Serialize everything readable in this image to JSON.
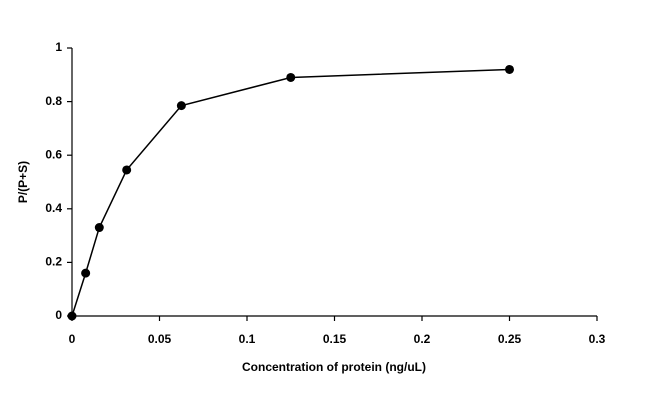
{
  "chart_data": {
    "type": "line",
    "x_label": "Concentration of protein (ng/uL)",
    "y_label": "P/(P+S)",
    "x": [
      0,
      0.0078,
      0.0156,
      0.03125,
      0.0625,
      0.125,
      0.25
    ],
    "series": [
      {
        "color": "#000000",
        "values": [
          0,
          0.16,
          0.33,
          0.545,
          0.785,
          0.89,
          0.92
        ]
      }
    ],
    "xlim": [
      0,
      0.3
    ],
    "xticks": [
      0,
      0.05,
      0.1,
      0.15,
      0.2,
      0.25,
      0.3
    ],
    "ylim": [
      0,
      1
    ],
    "yticks": [
      0,
      0.2,
      0.4,
      0.6,
      0.8,
      1
    ],
    "grid": false
  }
}
